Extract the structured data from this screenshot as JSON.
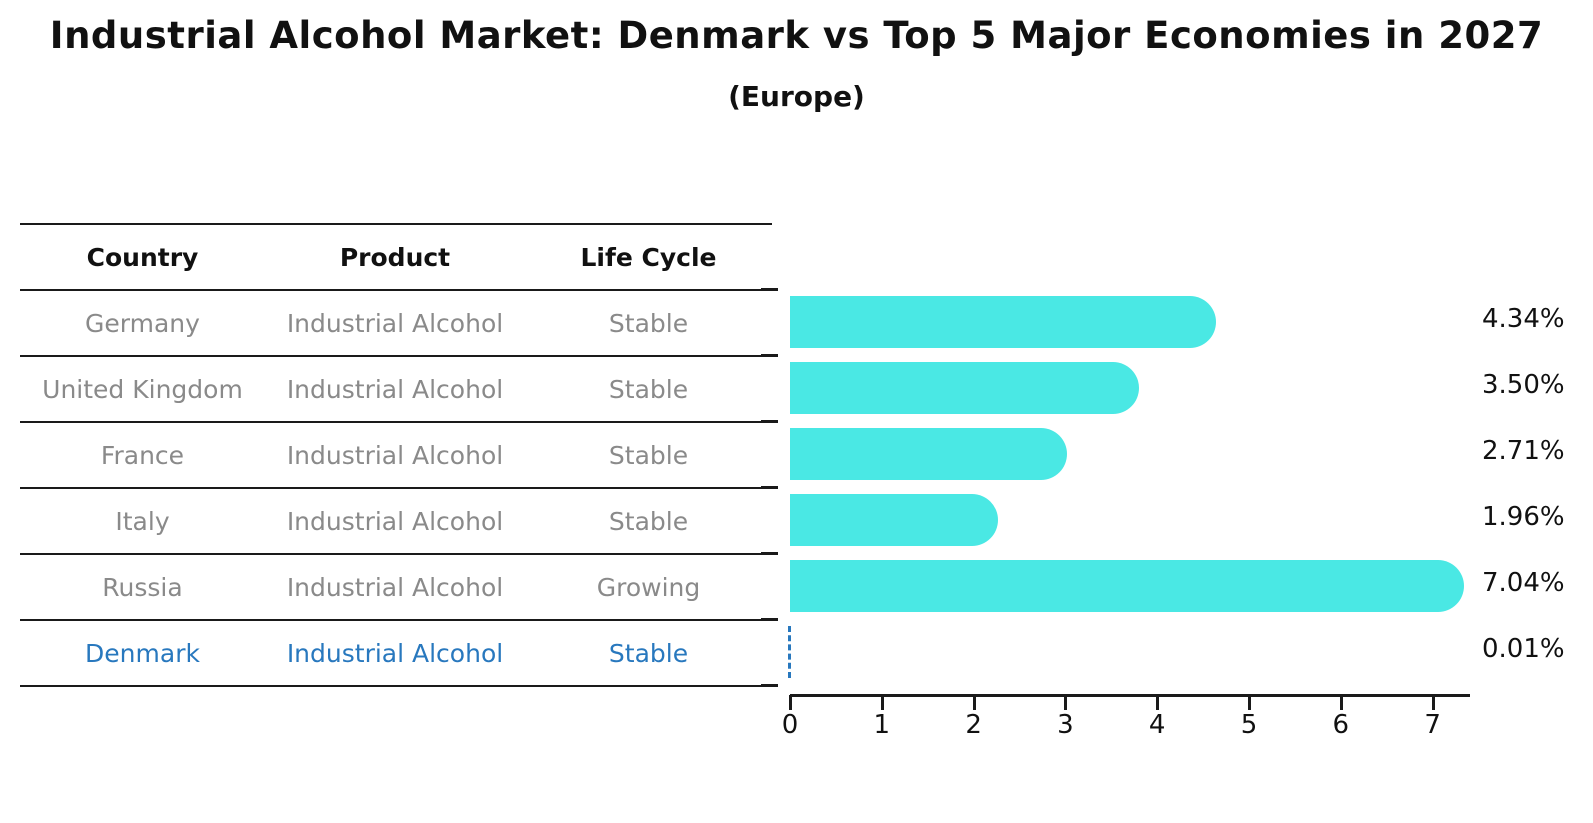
{
  "report": {
    "title": "Industrial Alcohol Market: Denmark vs Top 5 Major Economies in 2027",
    "subtitle": "(Europe)"
  },
  "table": {
    "headers": [
      "Country",
      "Product",
      "Life Cycle"
    ],
    "rows": [
      {
        "country": "Germany",
        "product": "Industrial Alcohol",
        "life_cycle": "Stable",
        "highlight": false
      },
      {
        "country": "United Kingdom",
        "product": "Industrial Alcohol",
        "life_cycle": "Stable",
        "highlight": false
      },
      {
        "country": "France",
        "product": "Industrial Alcohol",
        "life_cycle": "Stable",
        "highlight": false
      },
      {
        "country": "Italy",
        "product": "Industrial Alcohol",
        "life_cycle": "Stable",
        "highlight": false
      },
      {
        "country": "Russia",
        "product": "Industrial Alcohol",
        "life_cycle": "Growing",
        "highlight": false
      },
      {
        "country": "Denmark",
        "product": "Industrial Alcohol",
        "life_cycle": "Stable",
        "highlight": true
      }
    ]
  },
  "chart_data": {
    "type": "bar",
    "orientation": "horizontal",
    "title": "Industrial Alcohol Market: Denmark vs Top 5 Major Economies in 2027",
    "subtitle": "(Europe)",
    "categories": [
      "Germany",
      "United Kingdom",
      "France",
      "Italy",
      "Russia",
      "Denmark"
    ],
    "values": [
      4.34,
      3.5,
      2.71,
      1.96,
      7.04,
      0.01
    ],
    "value_labels": [
      "4.34%",
      "3.50%",
      "2.71%",
      "1.96%",
      "7.04%",
      "0.01%"
    ],
    "xticks": [
      0,
      1,
      2,
      3,
      4,
      5,
      6,
      7
    ],
    "xlim": [
      0,
      7.4
    ],
    "xlabel": "",
    "ylabel": "",
    "grid": false,
    "legend": false,
    "bar_color": "#4AE8E4",
    "highlight_color": "#2878BE",
    "highlight_category": "Denmark",
    "highlight_style": "dashed-line"
  }
}
